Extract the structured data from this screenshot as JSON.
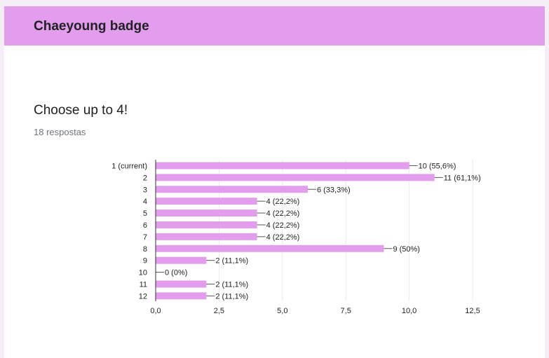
{
  "form": {
    "title": "Chaeyoung badge",
    "question": "Choose up to 4!",
    "response_count": "18 respostas"
  },
  "colors": {
    "header": "#e39ded",
    "bar": "#e39ded",
    "gridline": "#ebebeb",
    "axis": "#333333"
  },
  "chart_data": {
    "type": "bar",
    "orientation": "horizontal",
    "categories": [
      "1 (current)",
      "2",
      "3",
      "4",
      "5",
      "6",
      "7",
      "8",
      "9",
      "10",
      "11",
      "12"
    ],
    "values": [
      10,
      11,
      6,
      4,
      4,
      4,
      4,
      9,
      2,
      0,
      2,
      2
    ],
    "data_labels": [
      "10 (55,6%)",
      "11 (61,1%)",
      "6 (33,3%)",
      "4 (22,2%)",
      "4 (22,2%)",
      "4 (22,2%)",
      "4 (22,2%)",
      "9 (50%)",
      "2 (11,1%)",
      "0 (0%)",
      "2 (11,1%)",
      "2 (11,1%)"
    ],
    "xlim": [
      0,
      12.5
    ],
    "x_ticks": [
      0,
      2.5,
      5,
      7.5,
      10,
      12.5
    ],
    "x_tick_labels": [
      "0,0",
      "2,5",
      "5,0",
      "7,5",
      "10,0",
      "12,5"
    ],
    "grid": true,
    "legend": "none"
  }
}
